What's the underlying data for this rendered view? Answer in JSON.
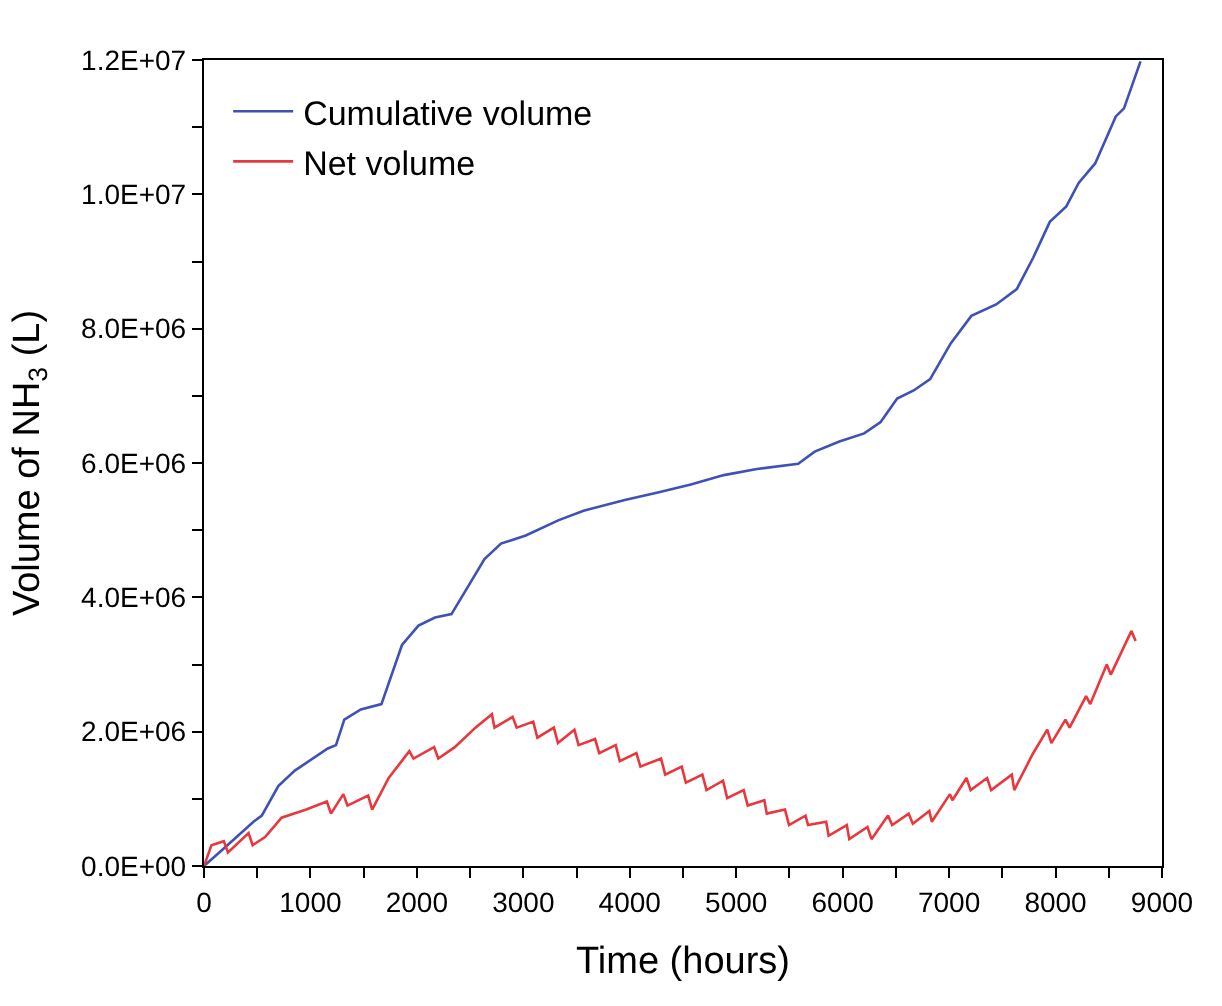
{
  "chart_data": {
    "type": "line",
    "xlabel": "Time (hours)",
    "ylabel": "Volume of NH$_{3}$ (L)",
    "xlim": [
      0,
      9000
    ],
    "ylim": [
      0,
      12000000
    ],
    "xticks": [
      0,
      {
        "value": 500,
        "label": null
      },
      1000,
      {
        "value": 1500,
        "label": null
      },
      2000,
      {
        "value": 2500,
        "label": null
      },
      3000,
      {
        "value": 3500,
        "label": null
      },
      4000,
      {
        "value": 4500,
        "label": null
      },
      5000,
      {
        "value": 5500,
        "label": null
      },
      6000,
      {
        "value": 6500,
        "label": null
      },
      7000,
      {
        "value": 7500,
        "label": null
      },
      8000,
      {
        "value": 8500,
        "label": null
      },
      9000
    ],
    "yticks": [
      {
        "value": 0,
        "label": "0.0E+00"
      },
      {
        "value": 1000000,
        "label": null
      },
      {
        "value": 2000000,
        "label": "2.0E+06"
      },
      {
        "value": 3000000,
        "label": null
      },
      {
        "value": 4000000,
        "label": "4.0E+06"
      },
      {
        "value": 5000000,
        "label": null
      },
      {
        "value": 6000000,
        "label": "6.0E+06"
      },
      {
        "value": 7000000,
        "label": null
      },
      {
        "value": 8000000,
        "label": "8.0E+06"
      },
      {
        "value": 9000000,
        "label": null
      },
      {
        "value": 10000000,
        "label": "1.0E+07"
      },
      {
        "value": 11000000,
        "label": null
      },
      {
        "value": 12000000,
        "label": "1.2E+07"
      }
    ],
    "legend": "top left",
    "marker": "none",
    "line_style": "solid",
    "series": [
      {
        "name": "Cumulative volume",
        "color": "#3f51b5",
        "x": [
          0,
          186,
          465,
          543,
          698,
          853,
          1163,
          1240,
          1318,
          1473,
          1667,
          1860,
          2015,
          2170,
          2325,
          2480,
          2635,
          2790,
          3023,
          3333,
          3566,
          3953,
          4264,
          4574,
          4884,
          5194,
          5582,
          5737,
          5969,
          6202,
          6357,
          6512,
          6667,
          6822,
          7015,
          7209,
          7442,
          7636,
          7791,
          7946,
          8101,
          8217,
          8372,
          8566,
          8643,
          8798
        ],
        "values": [
          0,
          260000,
          660000,
          750000,
          1190000,
          1420000,
          1750000,
          1800000,
          2180000,
          2330000,
          2410000,
          3290000,
          3580000,
          3700000,
          3750000,
          4160000,
          4570000,
          4800000,
          4920000,
          5150000,
          5290000,
          5450000,
          5560000,
          5680000,
          5820000,
          5910000,
          5990000,
          6170000,
          6320000,
          6440000,
          6610000,
          6960000,
          7080000,
          7250000,
          7780000,
          8190000,
          8360000,
          8590000,
          9060000,
          9590000,
          9820000,
          10170000,
          10460000,
          11160000,
          11280000,
          11980000
        ]
      },
      {
        "name": "Net volume",
        "color": "#e8383d",
        "x": [
          0,
          70,
          186,
          225,
          419,
          457,
          574,
          729,
          961,
          1154,
          1193,
          1309,
          1348,
          1542,
          1580,
          1735,
          1929,
          1968,
          2162,
          2201,
          2356,
          2550,
          2705,
          2729,
          2899,
          2938,
          3093,
          3132,
          3287,
          3325,
          3480,
          3519,
          3674,
          3713,
          3868,
          3906,
          4062,
          4100,
          4294,
          4333,
          4488,
          4527,
          4682,
          4721,
          4876,
          4915,
          5070,
          5108,
          5264,
          5287,
          5458,
          5496,
          5651,
          5675,
          5845,
          5868,
          6039,
          6062,
          6233,
          6271,
          6426,
          6465,
          6620,
          6659,
          6814,
          6837,
          7008,
          7031,
          7163,
          7202,
          7357,
          7395,
          7589,
          7612,
          7783,
          7922,
          7961,
          8093,
          8132,
          8287,
          8326,
          8481,
          8519,
          8713,
          8752
        ],
        "values": [
          0,
          310000,
          370000,
          200000,
          490000,
          310000,
          430000,
          720000,
          840000,
          960000,
          780000,
          1070000,
          900000,
          1050000,
          840000,
          1310000,
          1710000,
          1600000,
          1770000,
          1600000,
          1770000,
          2060000,
          2260000,
          2060000,
          2220000,
          2060000,
          2150000,
          1910000,
          2060000,
          1830000,
          2030000,
          1800000,
          1890000,
          1680000,
          1800000,
          1560000,
          1680000,
          1480000,
          1600000,
          1360000,
          1480000,
          1240000,
          1360000,
          1130000,
          1270000,
          1010000,
          1130000,
          900000,
          980000,
          780000,
          840000,
          610000,
          750000,
          610000,
          660000,
          450000,
          610000,
          400000,
          580000,
          400000,
          750000,
          610000,
          780000,
          630000,
          820000,
          660000,
          1070000,
          980000,
          1310000,
          1130000,
          1310000,
          1130000,
          1360000,
          1130000,
          1660000,
          2030000,
          1830000,
          2180000,
          2060000,
          2530000,
          2410000,
          3000000,
          2850000,
          3500000,
          3350000
        ]
      }
    ]
  }
}
